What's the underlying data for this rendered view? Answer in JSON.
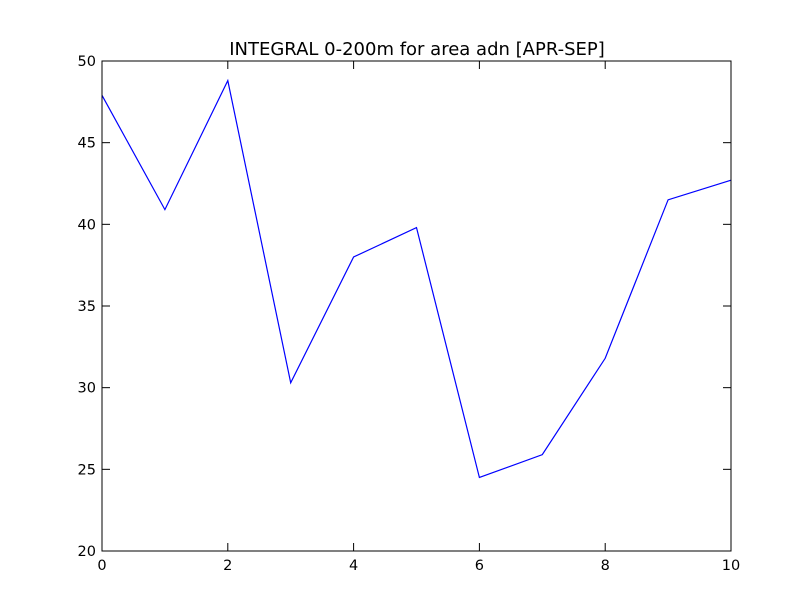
{
  "chart_data": {
    "type": "line",
    "title": "INTEGRAL 0-200m for area adn [APR-SEP]",
    "xlabel": "",
    "ylabel": "",
    "xlim": [
      0,
      10
    ],
    "ylim": [
      20,
      50
    ],
    "x_ticks": [
      "0",
      "2",
      "4",
      "6",
      "8",
      "10"
    ],
    "y_ticks": [
      "20",
      "25",
      "30",
      "35",
      "40",
      "45",
      "50"
    ],
    "grid": false,
    "series": [
      {
        "color": "#0000ff",
        "x": [
          0,
          1,
          2,
          3,
          4,
          5,
          6,
          7,
          8,
          9,
          10
        ],
        "values": [
          47.9,
          40.9,
          48.8,
          30.3,
          38.0,
          39.8,
          24.5,
          25.9,
          31.8,
          41.5,
          42.7
        ]
      }
    ]
  }
}
